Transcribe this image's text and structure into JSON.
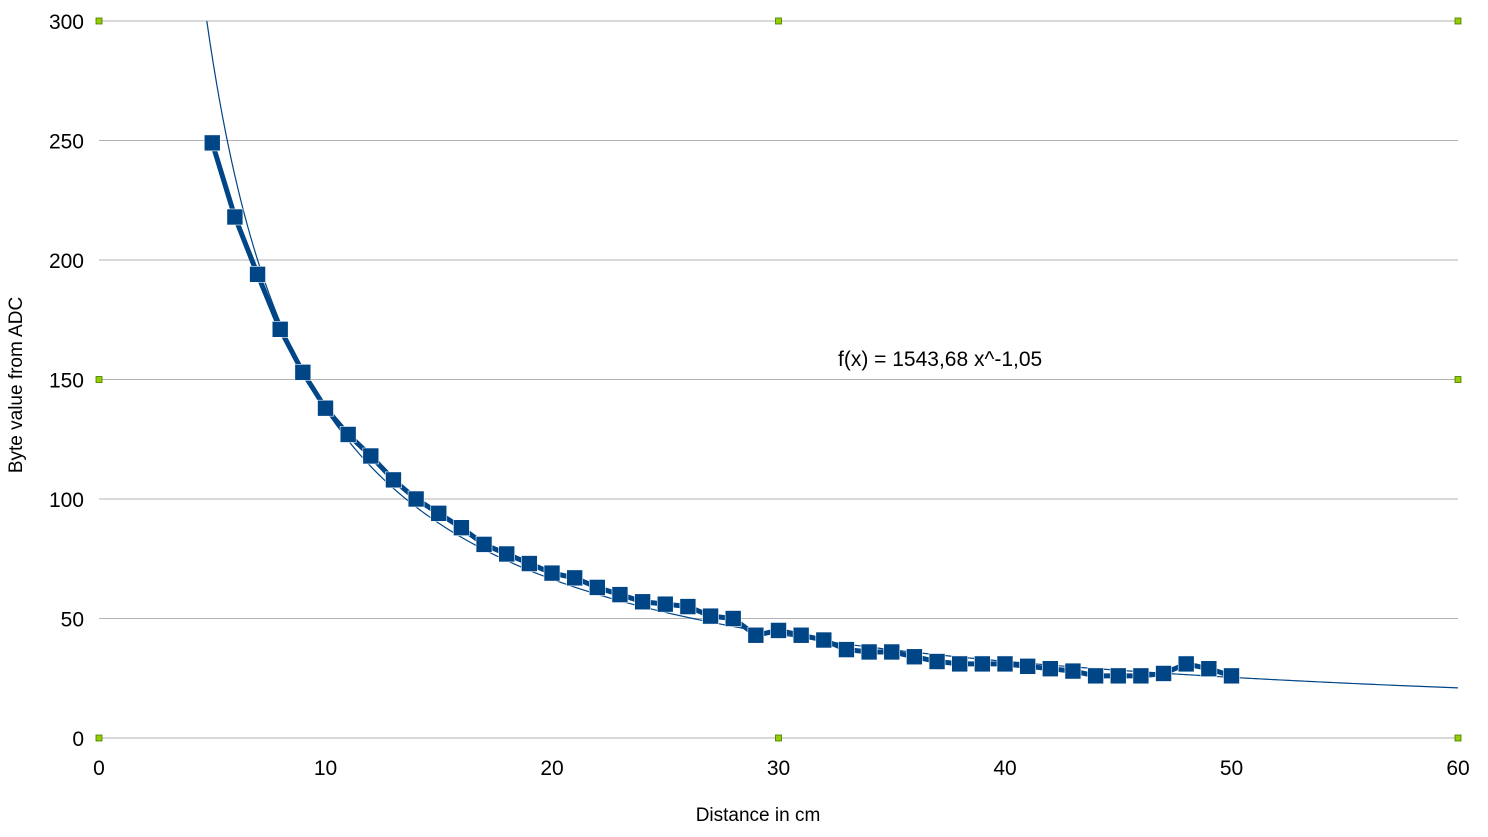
{
  "chart_data": {
    "type": "line",
    "title": "",
    "xlabel": "Distance in cm",
    "ylabel": "Byte value from ADC",
    "xlim": [
      0,
      60
    ],
    "ylim": [
      0,
      300
    ],
    "xticks": [
      0,
      10,
      20,
      30,
      40,
      50,
      60
    ],
    "yticks": [
      0,
      50,
      100,
      150,
      200,
      250,
      300
    ],
    "grid": "horizontal",
    "annotation": "f(x) = 1543,68 x^-1,05",
    "colors": {
      "series": "#004586",
      "trendline": "#004586",
      "grid": "#b3b3b3",
      "handles": "#99cc00"
    },
    "series": [
      {
        "x": [
          5,
          6,
          7,
          8,
          9,
          10,
          11,
          12,
          13,
          14,
          15,
          16,
          17,
          18,
          19,
          20,
          21,
          22,
          23,
          24,
          25,
          26,
          27,
          28,
          29,
          30,
          31,
          32,
          33,
          34,
          35,
          36,
          37,
          38,
          39,
          40,
          41,
          42,
          43,
          44,
          45,
          46,
          47,
          48,
          49,
          50
        ],
        "values": [
          249,
          218,
          194,
          171,
          153,
          138,
          127,
          118,
          108,
          100,
          94,
          88,
          81,
          77,
          73,
          69,
          67,
          63,
          60,
          57,
          56,
          55,
          51,
          50,
          43,
          45,
          43,
          41,
          37,
          36,
          36,
          34,
          32,
          31,
          31,
          31,
          30,
          29,
          28,
          26,
          26,
          26,
          27,
          31,
          29,
          26
        ]
      }
    ],
    "trendline": {
      "type": "power",
      "coefficient": 1543.68,
      "exponent": -1.05
    }
  }
}
